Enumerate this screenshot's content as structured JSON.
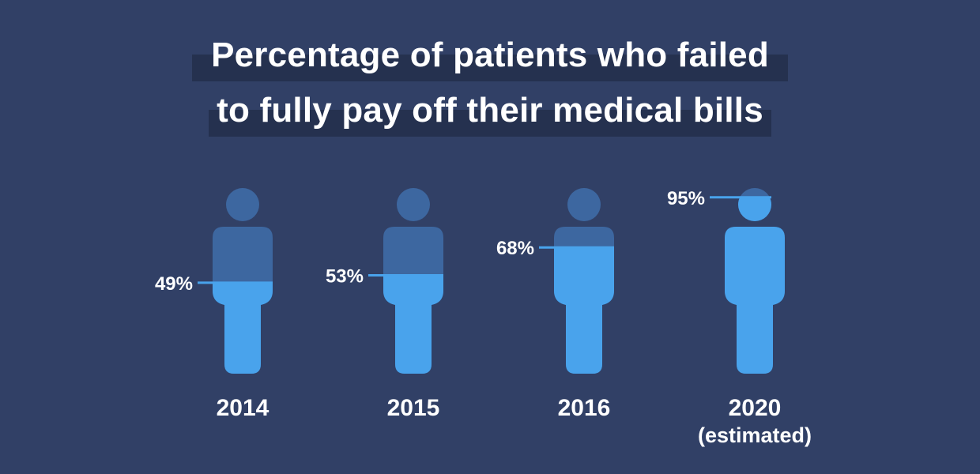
{
  "chart_data": {
    "type": "bar",
    "title_lines": [
      "Percentage of patients who failed",
      "to fully pay off their medical bills"
    ],
    "categories": [
      "2014",
      "2015",
      "2016",
      "2020"
    ],
    "category_notes": [
      "",
      "",
      "",
      "(estimated)"
    ],
    "values": [
      49,
      53,
      68,
      95
    ],
    "value_labels": [
      "49%",
      "53%",
      "68%",
      "95%"
    ],
    "ylim": [
      0,
      100
    ],
    "colors": {
      "background": "#314066",
      "title_highlight": "#25314f",
      "figure_empty": "#3d67a0",
      "figure_fill": "#49a3ec",
      "text": "#ffffff"
    }
  }
}
